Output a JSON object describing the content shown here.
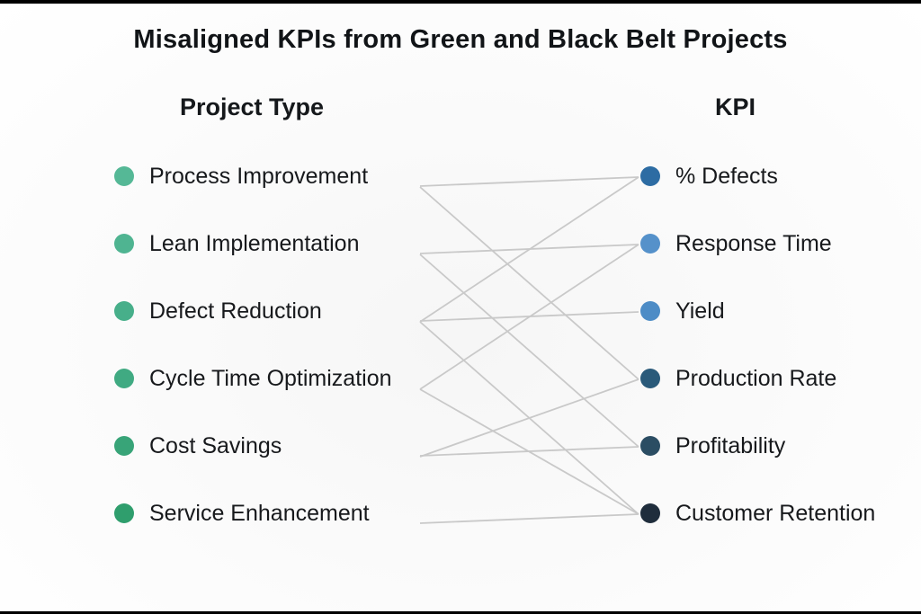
{
  "title": "Misaligned KPIs from Green and Black Belt Projects",
  "columns": {
    "left_header": "Project Type",
    "right_header": "KPI"
  },
  "left_items": [
    {
      "label": "Process Improvement",
      "bullet_color": "#55b896",
      "bullet_icon": "green-dot-icon"
    },
    {
      "label": "Lean Implementation",
      "bullet_color": "#4fb491",
      "bullet_icon": "green-dot-icon"
    },
    {
      "label": "Defect Reduction",
      "bullet_color": "#47af8a",
      "bullet_icon": "green-dot-icon"
    },
    {
      "label": "Cycle Time Optimization",
      "bullet_color": "#40aa82",
      "bullet_icon": "green-dot-icon"
    },
    {
      "label": "Cost Savings",
      "bullet_color": "#38a478",
      "bullet_icon": "green-dot-icon"
    },
    {
      "label": "Service Enhancement",
      "bullet_color": "#2f9e6d",
      "bullet_icon": "green-dot-icon"
    }
  ],
  "right_items": [
    {
      "label": "% Defects",
      "bullet_color": "#2d6ca3",
      "bullet_icon": "blue-dot-icon"
    },
    {
      "label": "Response Time",
      "bullet_color": "#5591ca",
      "bullet_icon": "blue-dot-icon"
    },
    {
      "label": "Yield",
      "bullet_color": "#4d8cc6",
      "bullet_icon": "blue-dot-icon"
    },
    {
      "label": "Production Rate",
      "bullet_color": "#2a5a7a",
      "bullet_icon": "blue-dot-icon"
    },
    {
      "label": "Profitability",
      "bullet_color": "#2b4d63",
      "bullet_icon": "blue-dot-icon"
    },
    {
      "label": "Customer Retention",
      "bullet_color": "#1f2d3c",
      "bullet_icon": "navy-dot-icon"
    }
  ],
  "connections": [
    {
      "from": "Process Improvement",
      "to": "% Defects"
    },
    {
      "from": "Process Improvement",
      "to": "Production Rate"
    },
    {
      "from": "Lean Implementation",
      "to": "Response Time"
    },
    {
      "from": "Lean Implementation",
      "to": "Profitability"
    },
    {
      "from": "Defect Reduction",
      "to": "Yield"
    },
    {
      "from": "Defect Reduction",
      "to": "% Defects"
    },
    {
      "from": "Defect Reduction",
      "to": "Customer Retention"
    },
    {
      "from": "Cycle Time Optimization",
      "to": "Response Time"
    },
    {
      "from": "Cycle Time Optimization",
      "to": "Customer Retention"
    },
    {
      "from": "Cost Savings",
      "to": "Profitability"
    },
    {
      "from": "Cost Savings",
      "to": "Production Rate"
    },
    {
      "from": "Service Enhancement",
      "to": "Customer Retention"
    }
  ],
  "connector_line_color": "#c9c9c9"
}
